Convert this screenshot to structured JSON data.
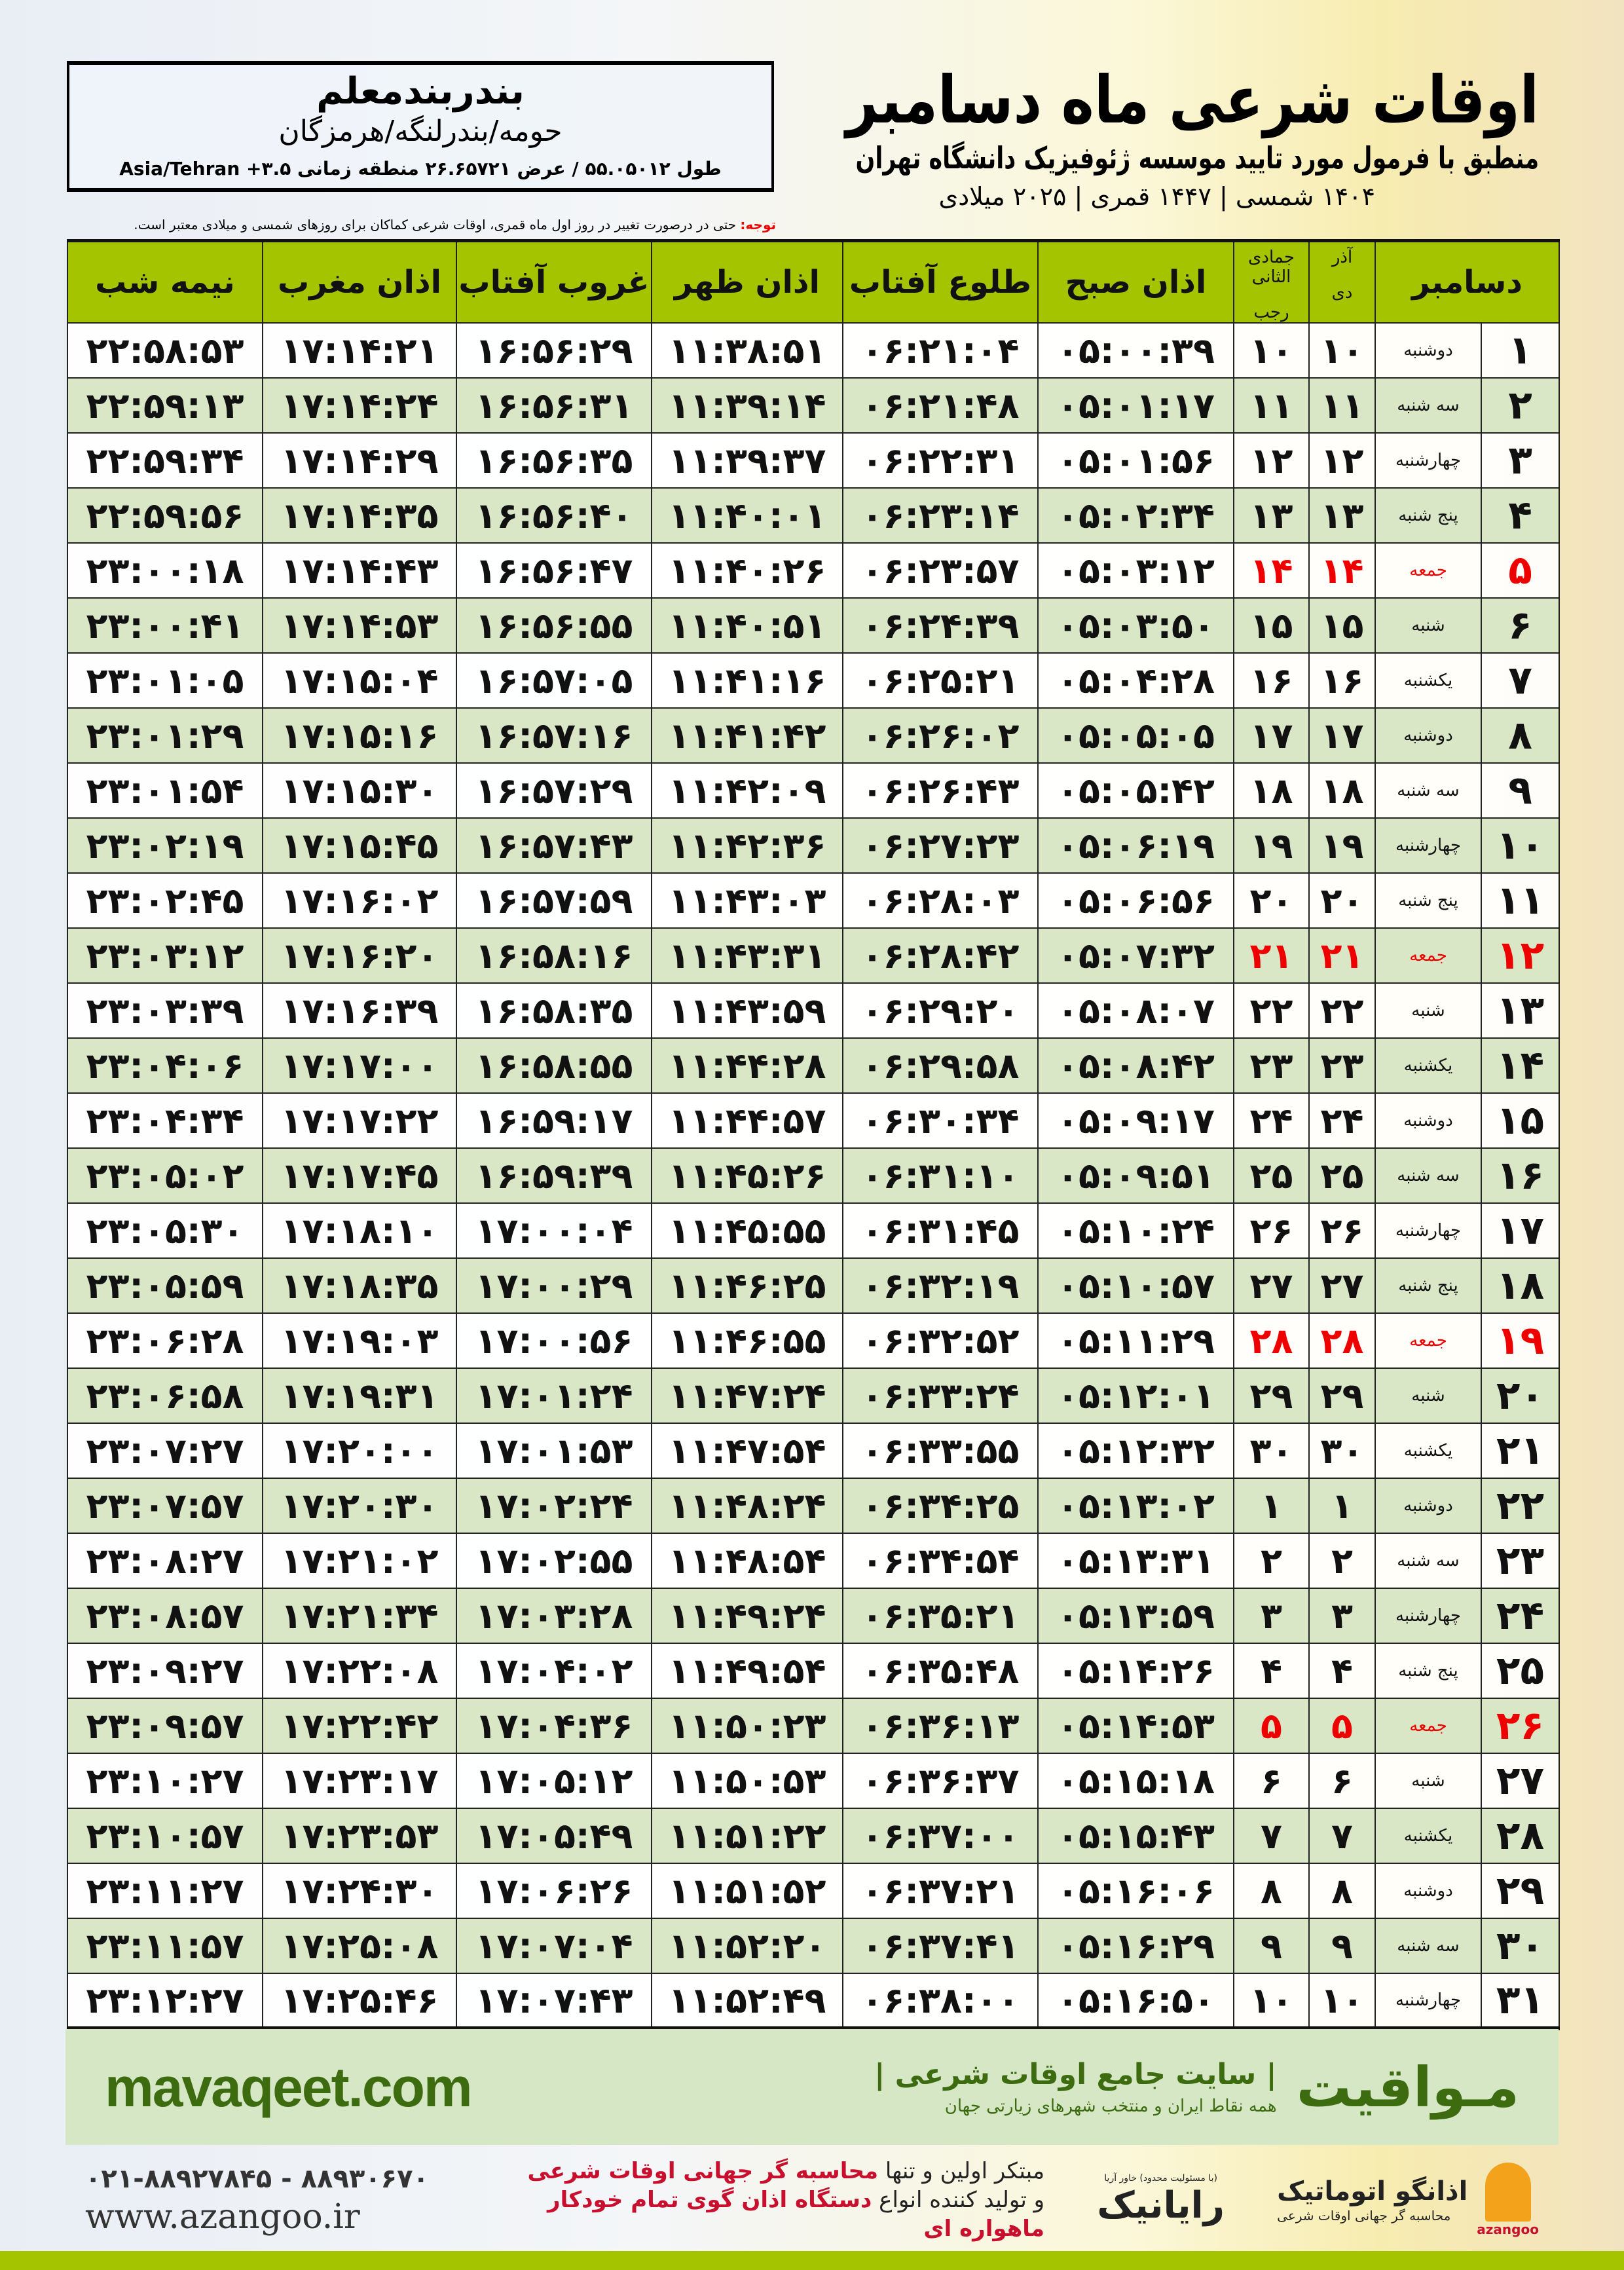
{
  "location": {
    "name": "بندربندمعلم",
    "region": "حومه/بندرلنگه/هرمزگان",
    "coords": "طول ۵۵.۰۵۰۱۲ / عرض ۲۶.۶۵۷۲۱ منطقه زمانی ۳.۵+ Asia/Tehran"
  },
  "header": {
    "title": "اوقات شرعی ماه دسامبر",
    "subtitle": "منطبق با فرمول مورد تایید موسسه ژئوفیزیک دانشگاه تهران",
    "years": "۱۴۰۴ شمسی | ۱۴۴۷ قمری | ۲۰۲۵ میلادی"
  },
  "note": {
    "label": "توجه:",
    "text": " حتی در درصورت تغییر در روز اول ماه قمری، اوقات شرعی کماکان برای روزهای شمسی و میلادی معتبر است."
  },
  "table": {
    "columns": {
      "month": "دسامبر",
      "shamsi_top": "آذر",
      "shamsi_bottom": "دی",
      "hijri_top": "جمادی الثانی",
      "hijri_bottom": "رجب",
      "fajr": "اذان صبح",
      "sunrise": "طلوع آفتاب",
      "dhuhr": "اذان ظهر",
      "sunset": "غروب آفتاب",
      "maghrib": "اذان مغرب",
      "midnight": "نیمه شب"
    },
    "friday_color": "#e00000",
    "rows": [
      [
        "۱",
        "دوشنبه",
        "۱۰",
        "۱۰",
        "۰۵:۰۰:۳۹",
        "۰۶:۲۱:۰۴",
        "۱۱:۳۸:۵۱",
        "۱۶:۵۶:۲۹",
        "۱۷:۱۴:۲۱",
        "۲۲:۵۸:۵۳"
      ],
      [
        "۲",
        "سه شنبه",
        "۱۱",
        "۱۱",
        "۰۵:۰۱:۱۷",
        "۰۶:۲۱:۴۸",
        "۱۱:۳۹:۱۴",
        "۱۶:۵۶:۳۱",
        "۱۷:۱۴:۲۴",
        "۲۲:۵۹:۱۳"
      ],
      [
        "۳",
        "چهارشنبه",
        "۱۲",
        "۱۲",
        "۰۵:۰۱:۵۶",
        "۰۶:۲۲:۳۱",
        "۱۱:۳۹:۳۷",
        "۱۶:۵۶:۳۵",
        "۱۷:۱۴:۲۹",
        "۲۲:۵۹:۳۴"
      ],
      [
        "۴",
        "پنج شنبه",
        "۱۳",
        "۱۳",
        "۰۵:۰۲:۳۴",
        "۰۶:۲۳:۱۴",
        "۱۱:۴۰:۰۱",
        "۱۶:۵۶:۴۰",
        "۱۷:۱۴:۳۵",
        "۲۲:۵۹:۵۶"
      ],
      [
        "۵",
        "جمعه",
        "۱۴",
        "۱۴",
        "۰۵:۰۳:۱۲",
        "۰۶:۲۳:۵۷",
        "۱۱:۴۰:۲۶",
        "۱۶:۵۶:۴۷",
        "۱۷:۱۴:۴۳",
        "۲۳:۰۰:۱۸"
      ],
      [
        "۶",
        "شنبه",
        "۱۵",
        "۱۵",
        "۰۵:۰۳:۵۰",
        "۰۶:۲۴:۳۹",
        "۱۱:۴۰:۵۱",
        "۱۶:۵۶:۵۵",
        "۱۷:۱۴:۵۳",
        "۲۳:۰۰:۴۱"
      ],
      [
        "۷",
        "یکشنبه",
        "۱۶",
        "۱۶",
        "۰۵:۰۴:۲۸",
        "۰۶:۲۵:۲۱",
        "۱۱:۴۱:۱۶",
        "۱۶:۵۷:۰۵",
        "۱۷:۱۵:۰۴",
        "۲۳:۰۱:۰۵"
      ],
      [
        "۸",
        "دوشنبه",
        "۱۷",
        "۱۷",
        "۰۵:۰۵:۰۵",
        "۰۶:۲۶:۰۲",
        "۱۱:۴۱:۴۲",
        "۱۶:۵۷:۱۶",
        "۱۷:۱۵:۱۶",
        "۲۳:۰۱:۲۹"
      ],
      [
        "۹",
        "سه شنبه",
        "۱۸",
        "۱۸",
        "۰۵:۰۵:۴۲",
        "۰۶:۲۶:۴۳",
        "۱۱:۴۲:۰۹",
        "۱۶:۵۷:۲۹",
        "۱۷:۱۵:۳۰",
        "۲۳:۰۱:۵۴"
      ],
      [
        "۱۰",
        "چهارشنبه",
        "۱۹",
        "۱۹",
        "۰۵:۰۶:۱۹",
        "۰۶:۲۷:۲۳",
        "۱۱:۴۲:۳۶",
        "۱۶:۵۷:۴۳",
        "۱۷:۱۵:۴۵",
        "۲۳:۰۲:۱۹"
      ],
      [
        "۱۱",
        "پنج شنبه",
        "۲۰",
        "۲۰",
        "۰۵:۰۶:۵۶",
        "۰۶:۲۸:۰۳",
        "۱۱:۴۳:۰۳",
        "۱۶:۵۷:۵۹",
        "۱۷:۱۶:۰۲",
        "۲۳:۰۲:۴۵"
      ],
      [
        "۱۲",
        "جمعه",
        "۲۱",
        "۲۱",
        "۰۵:۰۷:۳۲",
        "۰۶:۲۸:۴۲",
        "۱۱:۴۳:۳۱",
        "۱۶:۵۸:۱۶",
        "۱۷:۱۶:۲۰",
        "۲۳:۰۳:۱۲"
      ],
      [
        "۱۳",
        "شنبه",
        "۲۲",
        "۲۲",
        "۰۵:۰۸:۰۷",
        "۰۶:۲۹:۲۰",
        "۱۱:۴۳:۵۹",
        "۱۶:۵۸:۳۵",
        "۱۷:۱۶:۳۹",
        "۲۳:۰۳:۳۹"
      ],
      [
        "۱۴",
        "یکشنبه",
        "۲۳",
        "۲۳",
        "۰۵:۰۸:۴۲",
        "۰۶:۲۹:۵۸",
        "۱۱:۴۴:۲۸",
        "۱۶:۵۸:۵۵",
        "۱۷:۱۷:۰۰",
        "۲۳:۰۴:۰۶"
      ],
      [
        "۱۵",
        "دوشنبه",
        "۲۴",
        "۲۴",
        "۰۵:۰۹:۱۷",
        "۰۶:۳۰:۳۴",
        "۱۱:۴۴:۵۷",
        "۱۶:۵۹:۱۷",
        "۱۷:۱۷:۲۲",
        "۲۳:۰۴:۳۴"
      ],
      [
        "۱۶",
        "سه شنبه",
        "۲۵",
        "۲۵",
        "۰۵:۰۹:۵۱",
        "۰۶:۳۱:۱۰",
        "۱۱:۴۵:۲۶",
        "۱۶:۵۹:۳۹",
        "۱۷:۱۷:۴۵",
        "۲۳:۰۵:۰۲"
      ],
      [
        "۱۷",
        "چهارشنبه",
        "۲۶",
        "۲۶",
        "۰۵:۱۰:۲۴",
        "۰۶:۳۱:۴۵",
        "۱۱:۴۵:۵۵",
        "۱۷:۰۰:۰۴",
        "۱۷:۱۸:۱۰",
        "۲۳:۰۵:۳۰"
      ],
      [
        "۱۸",
        "پنج شنبه",
        "۲۷",
        "۲۷",
        "۰۵:۱۰:۵۷",
        "۰۶:۳۲:۱۹",
        "۱۱:۴۶:۲۵",
        "۱۷:۰۰:۲۹",
        "۱۷:۱۸:۳۵",
        "۲۳:۰۵:۵۹"
      ],
      [
        "۱۹",
        "جمعه",
        "۲۸",
        "۲۸",
        "۰۵:۱۱:۲۹",
        "۰۶:۳۲:۵۲",
        "۱۱:۴۶:۵۵",
        "۱۷:۰۰:۵۶",
        "۱۷:۱۹:۰۳",
        "۲۳:۰۶:۲۸"
      ],
      [
        "۲۰",
        "شنبه",
        "۲۹",
        "۲۹",
        "۰۵:۱۲:۰۱",
        "۰۶:۳۳:۲۴",
        "۱۱:۴۷:۲۴",
        "۱۷:۰۱:۲۴",
        "۱۷:۱۹:۳۱",
        "۲۳:۰۶:۵۸"
      ],
      [
        "۲۱",
        "یکشنبه",
        "۳۰",
        "۳۰",
        "۰۵:۱۲:۳۲",
        "۰۶:۳۳:۵۵",
        "۱۱:۴۷:۵۴",
        "۱۷:۰۱:۵۳",
        "۱۷:۲۰:۰۰",
        "۲۳:۰۷:۲۷"
      ],
      [
        "۲۲",
        "دوشنبه",
        "۱",
        "۱",
        "۰۵:۱۳:۰۲",
        "۰۶:۳۴:۲۵",
        "۱۱:۴۸:۲۴",
        "۱۷:۰۲:۲۴",
        "۱۷:۲۰:۳۰",
        "۲۳:۰۷:۵۷"
      ],
      [
        "۲۳",
        "سه شنبه",
        "۲",
        "۲",
        "۰۵:۱۳:۳۱",
        "۰۶:۳۴:۵۴",
        "۱۱:۴۸:۵۴",
        "۱۷:۰۲:۵۵",
        "۱۷:۲۱:۰۲",
        "۲۳:۰۸:۲۷"
      ],
      [
        "۲۴",
        "چهارشنبه",
        "۳",
        "۳",
        "۰۵:۱۳:۵۹",
        "۰۶:۳۵:۲۱",
        "۱۱:۴۹:۲۴",
        "۱۷:۰۳:۲۸",
        "۱۷:۲۱:۳۴",
        "۲۳:۰۸:۵۷"
      ],
      [
        "۲۵",
        "پنج شنبه",
        "۴",
        "۴",
        "۰۵:۱۴:۲۶",
        "۰۶:۳۵:۴۸",
        "۱۱:۴۹:۵۴",
        "۱۷:۰۴:۰۲",
        "۱۷:۲۲:۰۸",
        "۲۳:۰۹:۲۷"
      ],
      [
        "۲۶",
        "جمعه",
        "۵",
        "۵",
        "۰۵:۱۴:۵۳",
        "۰۶:۳۶:۱۳",
        "۱۱:۵۰:۲۳",
        "۱۷:۰۴:۳۶",
        "۱۷:۲۲:۴۲",
        "۲۳:۰۹:۵۷"
      ],
      [
        "۲۷",
        "شنبه",
        "۶",
        "۶",
        "۰۵:۱۵:۱۸",
        "۰۶:۳۶:۳۷",
        "۱۱:۵۰:۵۳",
        "۱۷:۰۵:۱۲",
        "۱۷:۲۳:۱۷",
        "۲۳:۱۰:۲۷"
      ],
      [
        "۲۸",
        "یکشنبه",
        "۷",
        "۷",
        "۰۵:۱۵:۴۳",
        "۰۶:۳۷:۰۰",
        "۱۱:۵۱:۲۲",
        "۱۷:۰۵:۴۹",
        "۱۷:۲۳:۵۳",
        "۲۳:۱۰:۵۷"
      ],
      [
        "۲۹",
        "دوشنبه",
        "۸",
        "۸",
        "۰۵:۱۶:۰۶",
        "۰۶:۳۷:۲۱",
        "۱۱:۵۱:۵۲",
        "۱۷:۰۶:۲۶",
        "۱۷:۲۴:۳۰",
        "۲۳:۱۱:۲۷"
      ],
      [
        "۳۰",
        "سه شنبه",
        "۹",
        "۹",
        "۰۵:۱۶:۲۹",
        "۰۶:۳۷:۴۱",
        "۱۱:۵۲:۲۰",
        "۱۷:۰۷:۰۴",
        "۱۷:۲۵:۰۸",
        "۲۳:۱۱:۵۷"
      ],
      [
        "۳۱",
        "چهارشنبه",
        "۱۰",
        "۱۰",
        "۰۵:۱۶:۵۰",
        "۰۶:۳۸:۰۰",
        "۱۱:۵۲:۴۹",
        "۱۷:۰۷:۴۳",
        "۱۷:۲۵:۴۶",
        "۲۳:۱۲:۲۷"
      ]
    ]
  },
  "footer": {
    "logo": "مـواقیت",
    "tagline": "| سایت جامع اوقات شرعی |",
    "sub": "همه نقاط ایران و منتخب شهرهای زیارتی جهان",
    "url": "mavaqeet.com",
    "phone": "۰۲۱-۸۸۹۲۷۸۴۵ - ۸۸۹۳۰۶۷۰",
    "site": "www.azangoo.ir",
    "promo1_a": "مبتکر اولین و تنها ",
    "promo1_b": "محاسبه گر جهانی اوقات شرعی",
    "promo2_a": "و تولید کننده انواع ",
    "promo2_b": "دستگاه اذان گوی تمام خودکار ماهواره ای",
    "rayanik": "رایانیک",
    "rayanik_sub": "(با مسئولیت محدود) خاور آریا",
    "azangoo": "اذانگو اتوماتیک",
    "azangoo_sub": "محاسبه گر جهانی اوقات شرعی",
    "azangoo_en": "azangoo"
  },
  "colors": {
    "header_green": "#a4c400",
    "row_green": "#d9e7c7",
    "footer_green": "#d6e7c5",
    "brand_green": "#3d6b10",
    "accent_red": "#c8102e"
  }
}
